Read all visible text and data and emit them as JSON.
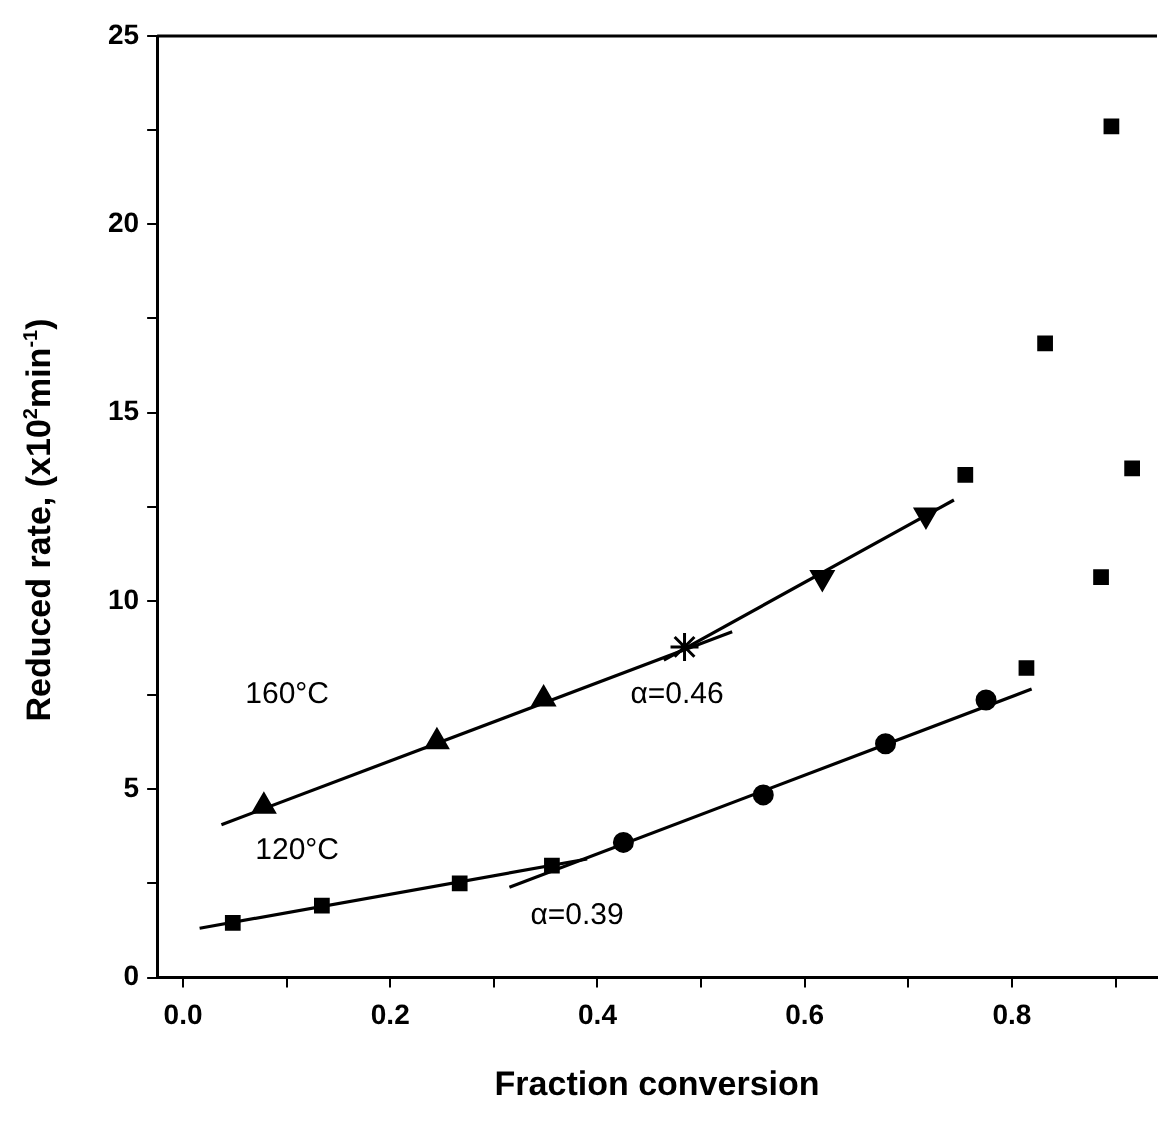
{
  "chart_data": {
    "type": "scatter",
    "xlabel": "Fraction conversion",
    "ylabel": "Reduced rate, (x10$^{2}$min$^{-1}$)",
    "xlim": [
      -0.025,
      0.94
    ],
    "ylim": [
      0,
      25
    ],
    "xticks": [
      {
        "value": 0,
        "label": "0.0"
      },
      {
        "value": 0.1,
        "label": null
      },
      {
        "value": 0.2,
        "label": "0.2"
      },
      {
        "value": 0.3,
        "label": null
      },
      {
        "value": 0.4,
        "label": "0.4"
      },
      {
        "value": 0.5,
        "label": null
      },
      {
        "value": 0.6,
        "label": "0.6"
      },
      {
        "value": 0.7,
        "label": null
      },
      {
        "value": 0.8,
        "label": "0.8"
      },
      {
        "value": 0.9,
        "label": null
      }
    ],
    "yticks": [
      0,
      {
        "value": 2.5,
        "label": null
      },
      5,
      {
        "value": 7.5,
        "label": null
      },
      10,
      {
        "value": 12.5,
        "label": null
      },
      15,
      {
        "value": 17.5,
        "label": null
      },
      20,
      {
        "value": 22.5,
        "label": null
      },
      25
    ],
    "grid": false,
    "legend": false,
    "series": [
      {
        "type": "scatter",
        "marker": "square",
        "color": "#000000",
        "x": [
          0.048,
          0.134,
          0.267,
          0.356
        ],
        "values": [
          1.45,
          1.91,
          2.5,
          2.97
        ]
      },
      {
        "type": "scatter",
        "marker": "circle",
        "color": "#000000",
        "x": [
          0.425,
          0.56,
          0.678,
          0.775
        ],
        "values": [
          3.59,
          4.85,
          6.21,
          7.37
        ]
      },
      {
        "type": "scatter",
        "marker": "square",
        "color": "#000000",
        "x": [
          0.814,
          0.886,
          0.916
        ],
        "values": [
          8.22,
          10.63,
          13.52
        ]
      },
      {
        "type": "scatter",
        "marker": "triangle",
        "color": "#000000",
        "x": [
          0.078,
          0.245,
          0.348
        ],
        "values": [
          4.55,
          6.26,
          7.4
        ]
      },
      {
        "type": "scatter",
        "marker": "cross",
        "color": "#000000",
        "x": [
          0.484
        ],
        "values": [
          8.78
        ]
      },
      {
        "type": "scatter",
        "marker": "triangle_down",
        "color": "#000000",
        "x": [
          0.617,
          0.717
        ],
        "values": [
          10.62,
          12.28
        ]
      },
      {
        "type": "scatter",
        "marker": "square",
        "color": "#000000",
        "x": [
          0.755,
          0.832,
          0.896
        ],
        "values": [
          13.35,
          16.84,
          22.6
        ]
      },
      {
        "type": "line",
        "marker": "none",
        "color": "#000000",
        "x": [
          0.016,
          0.39
        ],
        "values": [
          1.31,
          3.15
        ]
      },
      {
        "type": "line",
        "marker": "none",
        "color": "#000000",
        "x": [
          0.315,
          0.819
        ],
        "values": [
          2.4,
          7.66
        ]
      },
      {
        "type": "line",
        "marker": "none",
        "color": "#000000",
        "x": [
          0.037,
          0.53
        ],
        "values": [
          4.06,
          9.18
        ]
      },
      {
        "type": "line",
        "marker": "none",
        "color": "#000000",
        "x": [
          0.464,
          0.744
        ],
        "values": [
          8.43,
          12.68
        ]
      }
    ],
    "annotations": [
      "160°C",
      "120°C",
      "α=0.46",
      "α=0.39"
    ]
  }
}
